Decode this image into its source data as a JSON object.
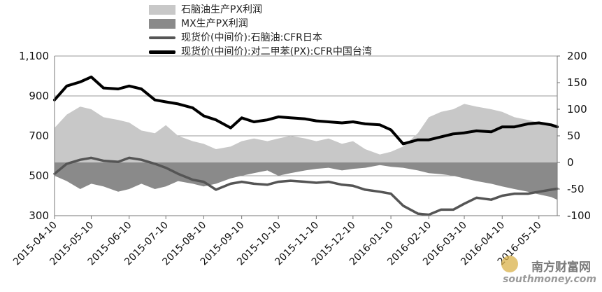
{
  "chart_data": {
    "type": "area",
    "title": "",
    "xlabel": "",
    "ylabel": "",
    "y_left": {
      "lim": [
        300,
        1100
      ],
      "ticks": [
        "300",
        "500",
        "700",
        "900",
        "1,100"
      ]
    },
    "y_right": {
      "lim": [
        -100,
        200
      ],
      "ticks": [
        "-100",
        "-50",
        "0",
        "50",
        "100",
        "150",
        "200"
      ]
    },
    "x_ticks": [
      "2015-04-10",
      "2015-05-10",
      "2015-06-10",
      "2015-07-10",
      "2015-08-10",
      "2015-09-10",
      "2015-10-10",
      "2015-11-10",
      "2015-12-10",
      "2016-01-10",
      "2016-02-10",
      "2016-03-10",
      "2016-04-10",
      "2016-05-10"
    ],
    "legend": {
      "placement": "top"
    },
    "grid": true,
    "series": [
      {
        "name": "石脑油生产PX利润",
        "kind": "area",
        "axis": "right",
        "color": "#c8c8c8",
        "x": [
          "2015-04-10",
          "2015-04-20",
          "2015-05-01",
          "2015-05-10",
          "2015-05-20",
          "2015-06-01",
          "2015-06-10",
          "2015-06-20",
          "2015-07-01",
          "2015-07-10",
          "2015-07-20",
          "2015-08-01",
          "2015-08-10",
          "2015-08-20",
          "2015-09-01",
          "2015-09-10",
          "2015-09-20",
          "2015-10-01",
          "2015-10-10",
          "2015-10-20",
          "2015-11-01",
          "2015-11-10",
          "2015-11-20",
          "2015-12-01",
          "2015-12-10",
          "2015-12-20",
          "2016-01-01",
          "2016-01-10",
          "2016-01-20",
          "2016-02-01",
          "2016-02-10",
          "2016-02-20",
          "2016-03-01",
          "2016-03-10",
          "2016-03-20",
          "2016-04-01",
          "2016-04-10",
          "2016-04-20",
          "2016-05-01",
          "2016-05-10",
          "2016-05-20",
          "2016-05-25"
        ],
        "values": [
          65,
          90,
          105,
          100,
          85,
          80,
          75,
          60,
          55,
          70,
          50,
          40,
          35,
          25,
          30,
          40,
          45,
          40,
          45,
          50,
          45,
          40,
          45,
          35,
          40,
          25,
          15,
          20,
          30,
          55,
          85,
          95,
          100,
          110,
          105,
          100,
          95,
          85,
          80,
          75,
          70,
          65
        ]
      },
      {
        "name": "MX生产PX利润",
        "kind": "area",
        "axis": "right",
        "color": "#8a8a8a",
        "x": [
          "2015-04-10",
          "2015-04-20",
          "2015-05-01",
          "2015-05-10",
          "2015-05-20",
          "2015-06-01",
          "2015-06-10",
          "2015-06-20",
          "2015-07-01",
          "2015-07-10",
          "2015-07-20",
          "2015-08-01",
          "2015-08-10",
          "2015-08-20",
          "2015-09-01",
          "2015-09-10",
          "2015-09-20",
          "2015-10-01",
          "2015-10-10",
          "2015-10-20",
          "2015-11-01",
          "2015-11-10",
          "2015-11-20",
          "2015-12-01",
          "2015-12-10",
          "2015-12-20",
          "2016-01-01",
          "2016-01-10",
          "2016-01-20",
          "2016-02-01",
          "2016-02-10",
          "2016-02-20",
          "2016-03-01",
          "2016-03-10",
          "2016-03-20",
          "2016-04-01",
          "2016-04-10",
          "2016-04-20",
          "2016-05-01",
          "2016-05-10",
          "2016-05-20",
          "2016-05-25"
        ],
        "values": [
          -25,
          -35,
          -50,
          -40,
          -45,
          -55,
          -50,
          -40,
          -50,
          -45,
          -35,
          -40,
          -45,
          -40,
          -30,
          -25,
          -20,
          -15,
          -25,
          -20,
          -15,
          -12,
          -10,
          -15,
          -12,
          -10,
          -5,
          -8,
          -10,
          -15,
          -20,
          -22,
          -25,
          -30,
          -35,
          -40,
          -45,
          -50,
          -55,
          -60,
          -65,
          -70
        ]
      },
      {
        "name": "现货价(中间价):石脑油:CFR日本",
        "kind": "line",
        "axis": "left",
        "color": "#555555",
        "width": 3.5,
        "x": [
          "2015-04-10",
          "2015-04-20",
          "2015-05-01",
          "2015-05-10",
          "2015-05-20",
          "2015-06-01",
          "2015-06-10",
          "2015-06-20",
          "2015-07-01",
          "2015-07-10",
          "2015-07-20",
          "2015-08-01",
          "2015-08-10",
          "2015-08-20",
          "2015-09-01",
          "2015-09-10",
          "2015-09-20",
          "2015-10-01",
          "2015-10-10",
          "2015-10-20",
          "2015-11-01",
          "2015-11-10",
          "2015-11-20",
          "2015-12-01",
          "2015-12-10",
          "2015-12-20",
          "2016-01-01",
          "2016-01-10",
          "2016-01-20",
          "2016-02-01",
          "2016-02-10",
          "2016-02-20",
          "2016-03-01",
          "2016-03-10",
          "2016-03-20",
          "2016-04-01",
          "2016-04-10",
          "2016-04-20",
          "2016-05-01",
          "2016-05-10",
          "2016-05-20",
          "2016-05-25"
        ],
        "values": [
          510,
          560,
          580,
          590,
          575,
          570,
          590,
          580,
          560,
          540,
          510,
          480,
          470,
          430,
          460,
          470,
          460,
          455,
          470,
          475,
          470,
          465,
          470,
          455,
          450,
          430,
          420,
          410,
          350,
          310,
          305,
          330,
          330,
          360,
          390,
          380,
          400,
          410,
          410,
          420,
          430,
          435
        ]
      },
      {
        "name": "现货价(中间价):对二甲苯(PX):CFR中国台湾",
        "kind": "line",
        "axis": "left",
        "color": "#000000",
        "width": 4,
        "x": [
          "2015-04-10",
          "2015-04-20",
          "2015-05-01",
          "2015-05-10",
          "2015-05-20",
          "2015-06-01",
          "2015-06-10",
          "2015-06-20",
          "2015-07-01",
          "2015-07-10",
          "2015-07-20",
          "2015-08-01",
          "2015-08-10",
          "2015-08-20",
          "2015-09-01",
          "2015-09-10",
          "2015-09-20",
          "2015-10-01",
          "2015-10-10",
          "2015-10-20",
          "2015-11-01",
          "2015-11-10",
          "2015-11-20",
          "2015-12-01",
          "2015-12-10",
          "2015-12-20",
          "2016-01-01",
          "2016-01-10",
          "2016-01-20",
          "2016-02-01",
          "2016-02-10",
          "2016-02-20",
          "2016-03-01",
          "2016-03-10",
          "2016-03-20",
          "2016-04-01",
          "2016-04-10",
          "2016-04-20",
          "2016-05-01",
          "2016-05-10",
          "2016-05-20",
          "2016-05-25"
        ],
        "values": [
          880,
          950,
          970,
          995,
          940,
          935,
          950,
          935,
          880,
          870,
          860,
          840,
          800,
          780,
          740,
          790,
          770,
          780,
          795,
          790,
          785,
          775,
          770,
          765,
          770,
          760,
          755,
          730,
          660,
          680,
          680,
          695,
          710,
          715,
          725,
          720,
          745,
          745,
          760,
          765,
          755,
          745
        ]
      }
    ]
  },
  "watermark": {
    "cn": "南方财富网",
    "en": "southmoney.com"
  }
}
